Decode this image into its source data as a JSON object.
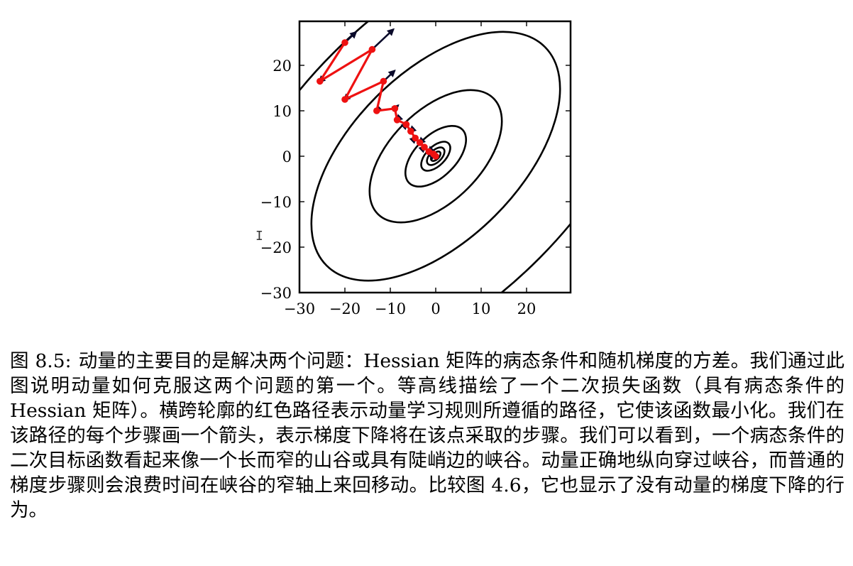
{
  "figure": {
    "caption_label": "图 8.5:",
    "caption_text": "动量的主要目的是解决两个问题：Hessian 矩阵的病态条件和随机梯度的方差。我们通过此图说明动量如何克服这两个问题的第一个。等高线描绘了一个二次损失函数（具有病态条件的 Hessian 矩阵）。横跨轮廓的红色路径表示动量学习规则所遵循的路径，它使该函数最小化。我们在该路径的每个步骤画一个箭头，表示梯度下降将在该点采取的步骤。我们可以看到，一个病态条件的二次目标函数看起来像一个长而窄的山谷或具有陡峭边的峡谷。动量正确地纵向穿过峡谷，而普通的梯度步骤则会浪费时间在峡谷的窄轴上来回移动。比较图 4.6，它也显示了没有动量的梯度下降的行为。"
  },
  "chart_data": {
    "type": "contour+path",
    "xlim": [
      -30,
      30
    ],
    "ylim": [
      -30,
      30
    ],
    "x_ticks": [
      "−30",
      "−20",
      "−10",
      "0",
      "10",
      "20"
    ],
    "y_ticks": [
      "20",
      "10",
      "0",
      "−10",
      "−20",
      "−30"
    ],
    "grid": false,
    "contour_levels": [
      0.5,
      1.5,
      3,
      6,
      12,
      24
    ],
    "momentum_path": [
      [
        -20,
        25
      ],
      [
        -25.5,
        16.5
      ],
      [
        -14,
        23.5
      ],
      [
        -20,
        12.5
      ],
      [
        -11.5,
        16.5
      ],
      [
        -13,
        10
      ],
      [
        -9,
        10.5
      ],
      [
        -8.5,
        8
      ],
      [
        -6.5,
        7
      ],
      [
        -5.5,
        5.5
      ],
      [
        -4.5,
        4
      ],
      [
        -3.5,
        3
      ],
      [
        -2.5,
        2
      ],
      [
        -1.5,
        1
      ],
      [
        -0.5,
        0.5
      ],
      [
        0,
        0
      ]
    ],
    "path_color": "#ee1111",
    "arrow_color": "#0a0a2a",
    "contour_color": "#000000"
  },
  "cursor_icon": "text-cursor-icon"
}
